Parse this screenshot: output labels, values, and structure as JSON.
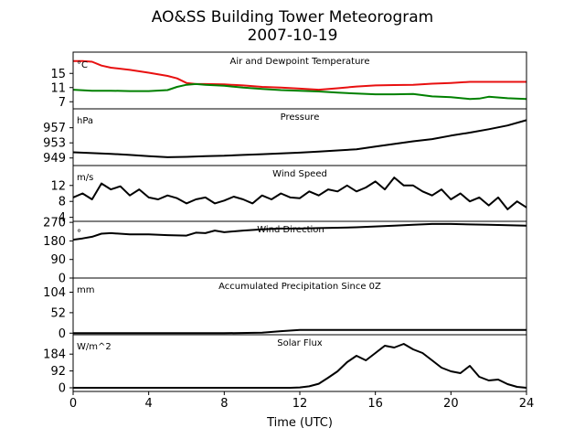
{
  "figure": {
    "title_line1": "AO&SS Building Tower Meteorogram",
    "title_line2": "2007-10-19",
    "xlabel": "Time (UTC)",
    "x_ticks": [
      "0",
      "4",
      "8",
      "12",
      "16",
      "20",
      "24"
    ]
  },
  "chart_data": [
    {
      "type": "line",
      "title": "Air and Dewpoint Temperature",
      "ylabel": "°C",
      "xlim": [
        0,
        24
      ],
      "ylim": [
        5,
        21
      ],
      "y_ticks": [
        7,
        11,
        15
      ],
      "series": [
        {
          "color": "#e81010",
          "x": [
            0,
            0.5,
            1,
            1.5,
            2,
            3,
            4,
            5,
            5.5,
            6,
            6.5,
            7,
            8,
            9,
            10,
            11,
            12,
            13,
            14,
            15,
            16,
            17,
            18,
            19,
            20,
            21,
            22,
            23,
            24
          ],
          "y": [
            18.5,
            18.5,
            18.3,
            17.2,
            16.6,
            16.0,
            15.2,
            14.3,
            13.6,
            12.3,
            12.0,
            12.0,
            11.9,
            11.6,
            11.2,
            11.0,
            10.7,
            10.4,
            10.8,
            11.3,
            11.6,
            11.7,
            11.8,
            12.1,
            12.3,
            12.6,
            12.6,
            12.6,
            12.6
          ]
        },
        {
          "color": "#008000",
          "x": [
            0,
            1,
            2,
            3,
            4,
            5,
            5.5,
            6,
            6.5,
            7,
            8,
            9,
            10,
            11,
            12,
            13,
            14,
            15,
            16,
            17,
            18,
            19,
            20,
            21,
            21.5,
            22,
            23,
            24
          ],
          "y": [
            10.4,
            10.1,
            10.1,
            10.0,
            10.0,
            10.3,
            11.2,
            11.8,
            12.0,
            11.8,
            11.5,
            11.0,
            10.6,
            10.3,
            10.1,
            9.9,
            9.6,
            9.3,
            9.1,
            9.1,
            9.2,
            8.5,
            8.3,
            7.8,
            7.9,
            8.4,
            8.0,
            7.8
          ]
        }
      ]
    },
    {
      "type": "line",
      "title": "Pressure",
      "ylabel": "hPa",
      "xlim": [
        0,
        24
      ],
      "ylim": [
        947,
        962
      ],
      "y_ticks": [
        949,
        953,
        957
      ],
      "series": [
        {
          "color": "#000000",
          "x": [
            0,
            1,
            2,
            3,
            4,
            5,
            6,
            7,
            8,
            9,
            10,
            11,
            12,
            13,
            14,
            15,
            16,
            17,
            18,
            19,
            20,
            21,
            22,
            23,
            24
          ],
          "y": [
            950.5,
            950.3,
            950.1,
            949.8,
            949.5,
            949.2,
            949.3,
            949.5,
            949.6,
            949.8,
            950.0,
            950.2,
            950.4,
            950.7,
            951.0,
            951.3,
            952.0,
            952.7,
            953.4,
            954.0,
            954.9,
            955.7,
            956.6,
            957.6,
            959.0
          ]
        }
      ]
    },
    {
      "type": "line",
      "title": "Wind Speed",
      "ylabel": "m/s",
      "xlim": [
        0,
        24
      ],
      "ylim": [
        3,
        17
      ],
      "y_ticks": [
        4,
        8,
        12
      ],
      "series": [
        {
          "color": "#000000",
          "x": [
            0,
            0.5,
            1,
            1.5,
            2,
            2.5,
            3,
            3.5,
            4,
            4.5,
            5,
            5.5,
            6,
            6.5,
            7,
            7.5,
            8,
            8.5,
            9,
            9.5,
            10,
            10.5,
            11,
            11.5,
            12,
            12.5,
            13,
            13.5,
            14,
            14.5,
            15,
            15.5,
            16,
            16.5,
            17,
            17.5,
            18,
            18.5,
            19,
            19.5,
            20,
            20.5,
            21,
            21.5,
            22,
            22.5,
            23,
            23.5,
            24
          ],
          "y": [
            9,
            10,
            8.5,
            12.5,
            11,
            11.8,
            9.5,
            11,
            9,
            8.5,
            9.5,
            8.8,
            7.5,
            8.5,
            9,
            7.5,
            8.2,
            9.2,
            8.5,
            7.5,
            9.5,
            8.5,
            10,
            9,
            8.8,
            10.5,
            9.5,
            11,
            10.5,
            12,
            10.5,
            11.5,
            13,
            11,
            14,
            12,
            12,
            10.5,
            9.5,
            11,
            8.5,
            10,
            8,
            9,
            7,
            9,
            6,
            8,
            6.5
          ]
        }
      ]
    },
    {
      "type": "line",
      "title": "Wind Direction",
      "ylabel": "°",
      "xlim": [
        0,
        24
      ],
      "ylim": [
        0,
        275
      ],
      "y_ticks": [
        0,
        90,
        180,
        270
      ],
      "series": [
        {
          "color": "#000000",
          "x": [
            0,
            0.5,
            1,
            1.5,
            2,
            3,
            4,
            5,
            6,
            6.5,
            7,
            7.5,
            8,
            9,
            10,
            11,
            12,
            13,
            14,
            15,
            16,
            17,
            18,
            19,
            20,
            21,
            22,
            23,
            24
          ],
          "y": [
            186,
            192,
            200,
            215,
            218,
            212,
            212,
            208,
            206,
            220,
            218,
            230,
            222,
            230,
            236,
            240,
            240,
            242,
            244,
            246,
            250,
            254,
            258,
            262,
            262,
            260,
            258,
            256,
            254
          ]
        }
      ]
    },
    {
      "type": "line",
      "title": "Accumulated Precipitation Since 0Z",
      "ylabel": "mm",
      "xlim": [
        0,
        24
      ],
      "ylim": [
        -4,
        140
      ],
      "y_ticks": [
        0,
        52,
        104
      ],
      "series": [
        {
          "color": "#000000",
          "x": [
            0,
            8,
            10,
            11,
            12,
            24
          ],
          "y": [
            0,
            0,
            1,
            5,
            8,
            8
          ]
        }
      ]
    },
    {
      "type": "line",
      "title": "Solar Flux",
      "ylabel": "W/m^2",
      "xlim": [
        0,
        24
      ],
      "ylim": [
        -20,
        290
      ],
      "y_ticks": [
        0,
        92,
        184
      ],
      "series": [
        {
          "color": "#000000",
          "x": [
            0,
            11.5,
            12,
            12.5,
            13,
            13.5,
            14,
            14.5,
            15,
            15.5,
            16,
            16.5,
            17,
            17.5,
            18,
            18.5,
            19,
            19.5,
            20,
            20.5,
            21,
            21.5,
            22,
            22.5,
            23,
            23.5,
            24
          ],
          "y": [
            0,
            0,
            2,
            8,
            22,
            55,
            90,
            140,
            175,
            150,
            190,
            230,
            220,
            240,
            210,
            190,
            150,
            110,
            90,
            80,
            120,
            60,
            40,
            45,
            20,
            5,
            0
          ]
        }
      ]
    }
  ]
}
